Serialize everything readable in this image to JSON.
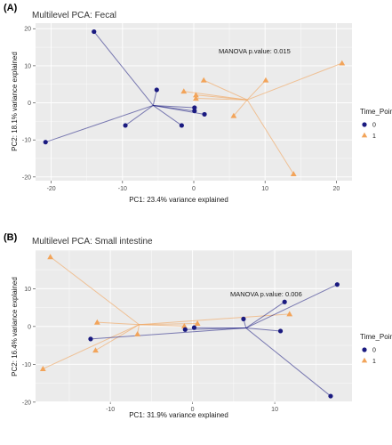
{
  "colors": {
    "time0": "#1a1a80",
    "time1": "#f2a45a",
    "panel": "#ebebeb",
    "grid": "#ffffff",
    "text": "#333333"
  },
  "legend": {
    "title": "Time_Point",
    "labels": [
      "0",
      "1"
    ]
  },
  "chart_data": [
    {
      "type": "scatter",
      "panel_label": "(A)",
      "title": "Multilevel PCA: Fecal",
      "xlabel": "PC1: 23.4% variance explained",
      "ylabel": "PC2: 18.1% variance explained",
      "annotation": "MANOVA p.value: 0.015",
      "xlim": [
        -22.2,
        22.2
      ],
      "ylim": [
        -21,
        21.5
      ],
      "xticks": [
        -20,
        -10,
        0,
        10,
        20
      ],
      "yticks": [
        -20,
        -10,
        0,
        10,
        20
      ],
      "grid": true,
      "legend_position": "right",
      "series": [
        {
          "name": "0",
          "centroid": [
            -5.7,
            -0.7
          ],
          "points": [
            [
              -14,
              19.2
            ],
            [
              -5.2,
              3.5
            ],
            [
              -20.8,
              -10.6
            ],
            [
              -9.6,
              -6.1
            ],
            [
              -1.7,
              -6.1
            ],
            [
              0.1,
              -1.3
            ],
            [
              0.1,
              -2.2
            ],
            [
              1.5,
              -3.1
            ]
          ]
        },
        {
          "name": "1",
          "centroid": [
            7.5,
            0.8
          ],
          "points": [
            [
              20.8,
              10.7
            ],
            [
              10.1,
              6.1
            ],
            [
              1.4,
              6.1
            ],
            [
              -1.4,
              3.1
            ],
            [
              0.3,
              2.1
            ],
            [
              0.3,
              1.2
            ],
            [
              5.6,
              -3.5
            ],
            [
              14,
              -19.2
            ]
          ]
        }
      ]
    },
    {
      "type": "scatter",
      "panel_label": "(B)",
      "title": "Multilevel PCA: Small intestine",
      "xlabel": "PC1: 31.9% variance explained",
      "ylabel": "PC2: 16.4% variance explained",
      "annotation": "MANOVA p.value: 0.006",
      "xlim": [
        -19.1,
        19.4
      ],
      "ylim": [
        -19.8,
        20.2
      ],
      "xticks": [
        -10,
        0,
        10
      ],
      "yticks": [
        -20,
        -10,
        0,
        10
      ],
      "grid": true,
      "legend_position": "right",
      "series": [
        {
          "name": "0",
          "centroid": [
            6.5,
            -0.4
          ],
          "points": [
            [
              17.6,
              11.1
            ],
            [
              11.2,
              6.5
            ],
            [
              6.2,
              2.0
            ],
            [
              10.7,
              -1.2
            ],
            [
              16.8,
              -18.4
            ],
            [
              0.2,
              -0.3
            ],
            [
              -0.9,
              -0.8
            ],
            [
              -12.4,
              -3.3
            ]
          ]
        },
        {
          "name": "1",
          "centroid": [
            -6.5,
            0.5
          ],
          "points": [
            [
              -17.3,
              18.4
            ],
            [
              -11.6,
              1.1
            ],
            [
              -11.8,
              -6.3
            ],
            [
              -18.2,
              -11.2
            ],
            [
              -6.7,
              -2.0
            ],
            [
              -1.0,
              0.1
            ],
            [
              0.6,
              0.8
            ],
            [
              11.8,
              3.3
            ]
          ]
        }
      ]
    }
  ]
}
